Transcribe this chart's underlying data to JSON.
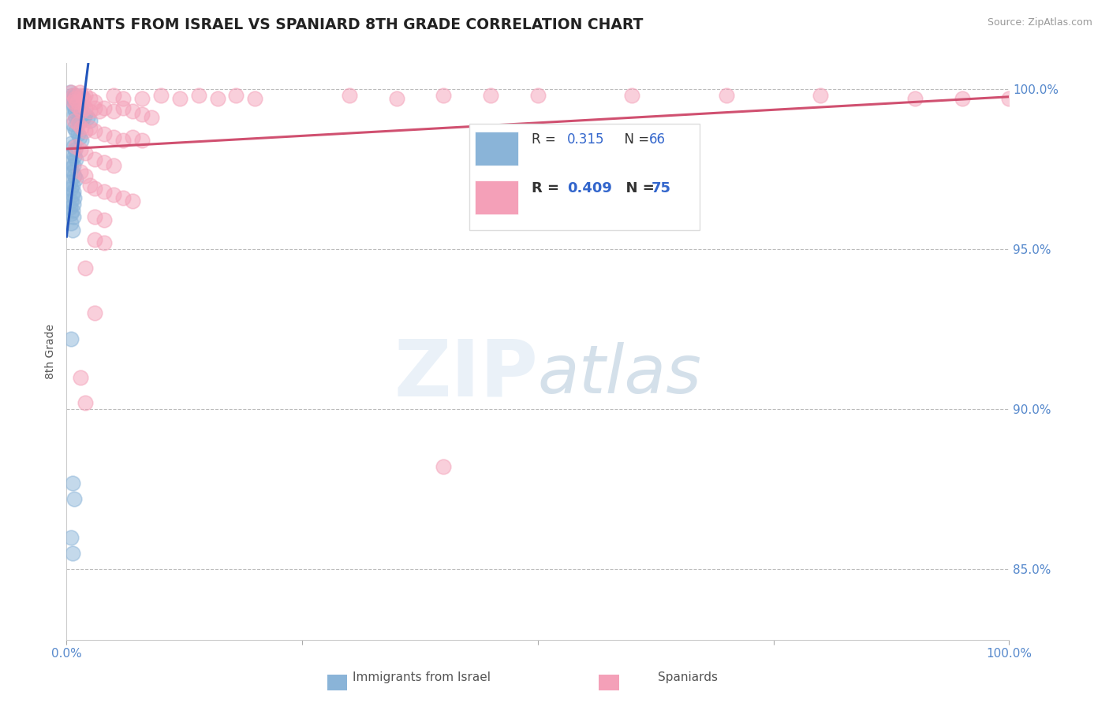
{
  "title": "IMMIGRANTS FROM ISRAEL VS SPANIARD 8TH GRADE CORRELATION CHART",
  "source": "Source: ZipAtlas.com",
  "ylabel": "8th Grade",
  "ytick_labels": [
    "85.0%",
    "90.0%",
    "95.0%",
    "100.0%"
  ],
  "ytick_values": [
    0.85,
    0.9,
    0.95,
    1.0
  ],
  "xlim": [
    0.0,
    1.0
  ],
  "ylim": [
    0.828,
    1.008
  ],
  "blue_color": "#8ab4d8",
  "pink_color": "#f4a0b8",
  "blue_line_color": "#2255bb",
  "pink_line_color": "#d05070",
  "blue_scatter": [
    [
      0.004,
      0.999
    ],
    [
      0.006,
      0.998
    ],
    [
      0.005,
      0.997
    ],
    [
      0.007,
      0.998
    ],
    [
      0.008,
      0.997
    ],
    [
      0.009,
      0.996
    ],
    [
      0.01,
      0.998
    ],
    [
      0.011,
      0.997
    ],
    [
      0.012,
      0.996
    ],
    [
      0.007,
      0.995
    ],
    [
      0.008,
      0.994
    ],
    [
      0.009,
      0.993
    ],
    [
      0.006,
      0.997
    ],
    [
      0.01,
      0.996
    ],
    [
      0.011,
      0.995
    ],
    [
      0.012,
      0.994
    ],
    [
      0.013,
      0.993
    ],
    [
      0.014,
      0.992
    ],
    [
      0.015,
      0.994
    ],
    [
      0.016,
      0.993
    ],
    [
      0.008,
      0.992
    ],
    [
      0.01,
      0.991
    ],
    [
      0.012,
      0.99
    ],
    [
      0.014,
      0.991
    ],
    [
      0.016,
      0.99
    ],
    [
      0.018,
      0.991
    ],
    [
      0.02,
      0.992
    ],
    [
      0.022,
      0.991
    ],
    [
      0.025,
      0.99
    ],
    [
      0.006,
      0.989
    ],
    [
      0.008,
      0.988
    ],
    [
      0.01,
      0.987
    ],
    [
      0.012,
      0.986
    ],
    [
      0.014,
      0.985
    ],
    [
      0.016,
      0.984
    ],
    [
      0.005,
      0.983
    ],
    [
      0.007,
      0.982
    ],
    [
      0.009,
      0.981
    ],
    [
      0.006,
      0.98
    ],
    [
      0.008,
      0.979
    ],
    [
      0.01,
      0.978
    ],
    [
      0.005,
      0.977
    ],
    [
      0.007,
      0.976
    ],
    [
      0.004,
      0.975
    ],
    [
      0.006,
      0.974
    ],
    [
      0.008,
      0.973
    ],
    [
      0.01,
      0.972
    ],
    [
      0.004,
      0.971
    ],
    [
      0.006,
      0.97
    ],
    [
      0.005,
      0.969
    ],
    [
      0.007,
      0.968
    ],
    [
      0.006,
      0.967
    ],
    [
      0.008,
      0.966
    ],
    [
      0.005,
      0.965
    ],
    [
      0.007,
      0.964
    ],
    [
      0.004,
      0.963
    ],
    [
      0.006,
      0.962
    ],
    [
      0.005,
      0.961
    ],
    [
      0.007,
      0.96
    ],
    [
      0.005,
      0.958
    ],
    [
      0.006,
      0.956
    ],
    [
      0.005,
      0.922
    ],
    [
      0.006,
      0.877
    ],
    [
      0.008,
      0.872
    ],
    [
      0.005,
      0.86
    ],
    [
      0.006,
      0.855
    ]
  ],
  "pink_scatter": [
    [
      0.005,
      0.999
    ],
    [
      0.007,
      0.998
    ],
    [
      0.009,
      0.997
    ],
    [
      0.011,
      0.996
    ],
    [
      0.014,
      0.999
    ],
    [
      0.016,
      0.998
    ],
    [
      0.018,
      0.997
    ],
    [
      0.02,
      0.998
    ],
    [
      0.025,
      0.997
    ],
    [
      0.03,
      0.996
    ],
    [
      0.05,
      0.998
    ],
    [
      0.06,
      0.997
    ],
    [
      0.08,
      0.997
    ],
    [
      0.1,
      0.998
    ],
    [
      0.12,
      0.997
    ],
    [
      0.14,
      0.998
    ],
    [
      0.16,
      0.997
    ],
    [
      0.18,
      0.998
    ],
    [
      0.2,
      0.997
    ],
    [
      0.3,
      0.998
    ],
    [
      0.35,
      0.997
    ],
    [
      0.4,
      0.998
    ],
    [
      0.45,
      0.998
    ],
    [
      0.5,
      0.998
    ],
    [
      0.6,
      0.998
    ],
    [
      0.7,
      0.998
    ],
    [
      0.8,
      0.998
    ],
    [
      0.9,
      0.997
    ],
    [
      0.95,
      0.997
    ],
    [
      1.0,
      0.997
    ],
    [
      0.007,
      0.996
    ],
    [
      0.01,
      0.995
    ],
    [
      0.013,
      0.994
    ],
    [
      0.016,
      0.993
    ],
    [
      0.02,
      0.994
    ],
    [
      0.025,
      0.993
    ],
    [
      0.03,
      0.994
    ],
    [
      0.035,
      0.993
    ],
    [
      0.04,
      0.994
    ],
    [
      0.05,
      0.993
    ],
    [
      0.06,
      0.994
    ],
    [
      0.07,
      0.993
    ],
    [
      0.08,
      0.992
    ],
    [
      0.09,
      0.991
    ],
    [
      0.008,
      0.99
    ],
    [
      0.012,
      0.989
    ],
    [
      0.016,
      0.988
    ],
    [
      0.02,
      0.987
    ],
    [
      0.025,
      0.988
    ],
    [
      0.03,
      0.987
    ],
    [
      0.04,
      0.986
    ],
    [
      0.05,
      0.985
    ],
    [
      0.06,
      0.984
    ],
    [
      0.07,
      0.985
    ],
    [
      0.08,
      0.984
    ],
    [
      0.01,
      0.982
    ],
    [
      0.015,
      0.981
    ],
    [
      0.02,
      0.98
    ],
    [
      0.03,
      0.978
    ],
    [
      0.04,
      0.977
    ],
    [
      0.05,
      0.976
    ],
    [
      0.015,
      0.974
    ],
    [
      0.02,
      0.973
    ],
    [
      0.025,
      0.97
    ],
    [
      0.03,
      0.969
    ],
    [
      0.04,
      0.968
    ],
    [
      0.05,
      0.967
    ],
    [
      0.06,
      0.966
    ],
    [
      0.07,
      0.965
    ],
    [
      0.03,
      0.96
    ],
    [
      0.04,
      0.959
    ],
    [
      0.03,
      0.953
    ],
    [
      0.04,
      0.952
    ],
    [
      0.02,
      0.944
    ],
    [
      0.03,
      0.93
    ],
    [
      0.015,
      0.91
    ],
    [
      0.02,
      0.902
    ],
    [
      0.4,
      0.882
    ]
  ]
}
